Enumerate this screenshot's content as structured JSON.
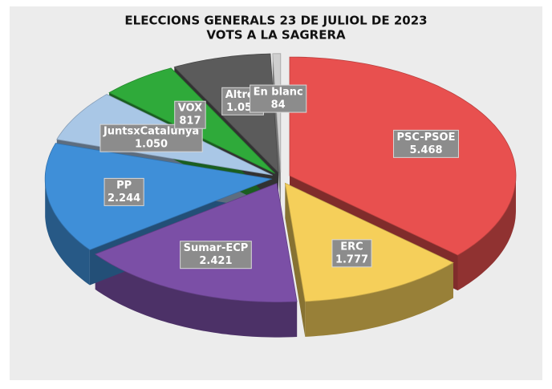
{
  "chart_data": {
    "type": "pie3d",
    "title": "ELECCIONS GENERALS 23 DE JULIOL DE 2023",
    "subtitle": "VOTS A LA SAGRERA",
    "categories": [
      "PSC-PSOE",
      "ERC",
      "Sumar-ECP",
      "PP",
      "JuntsxCatalunya",
      "VOX",
      "Altres",
      "En blanc"
    ],
    "values": [
      5468,
      1777,
      2421,
      2244,
      1050,
      817,
      1050,
      84
    ],
    "value_labels": [
      "5.468",
      "1.777",
      "2.421",
      "2.244",
      "1.050",
      "817",
      "1.050",
      "84"
    ],
    "colors": [
      "#e8504f",
      "#f5cf5a",
      "#7b4fa6",
      "#3f8fd8",
      "#a9c7e6",
      "#2faa3a",
      "#5b5b5b",
      "#cfcfcf"
    ]
  }
}
